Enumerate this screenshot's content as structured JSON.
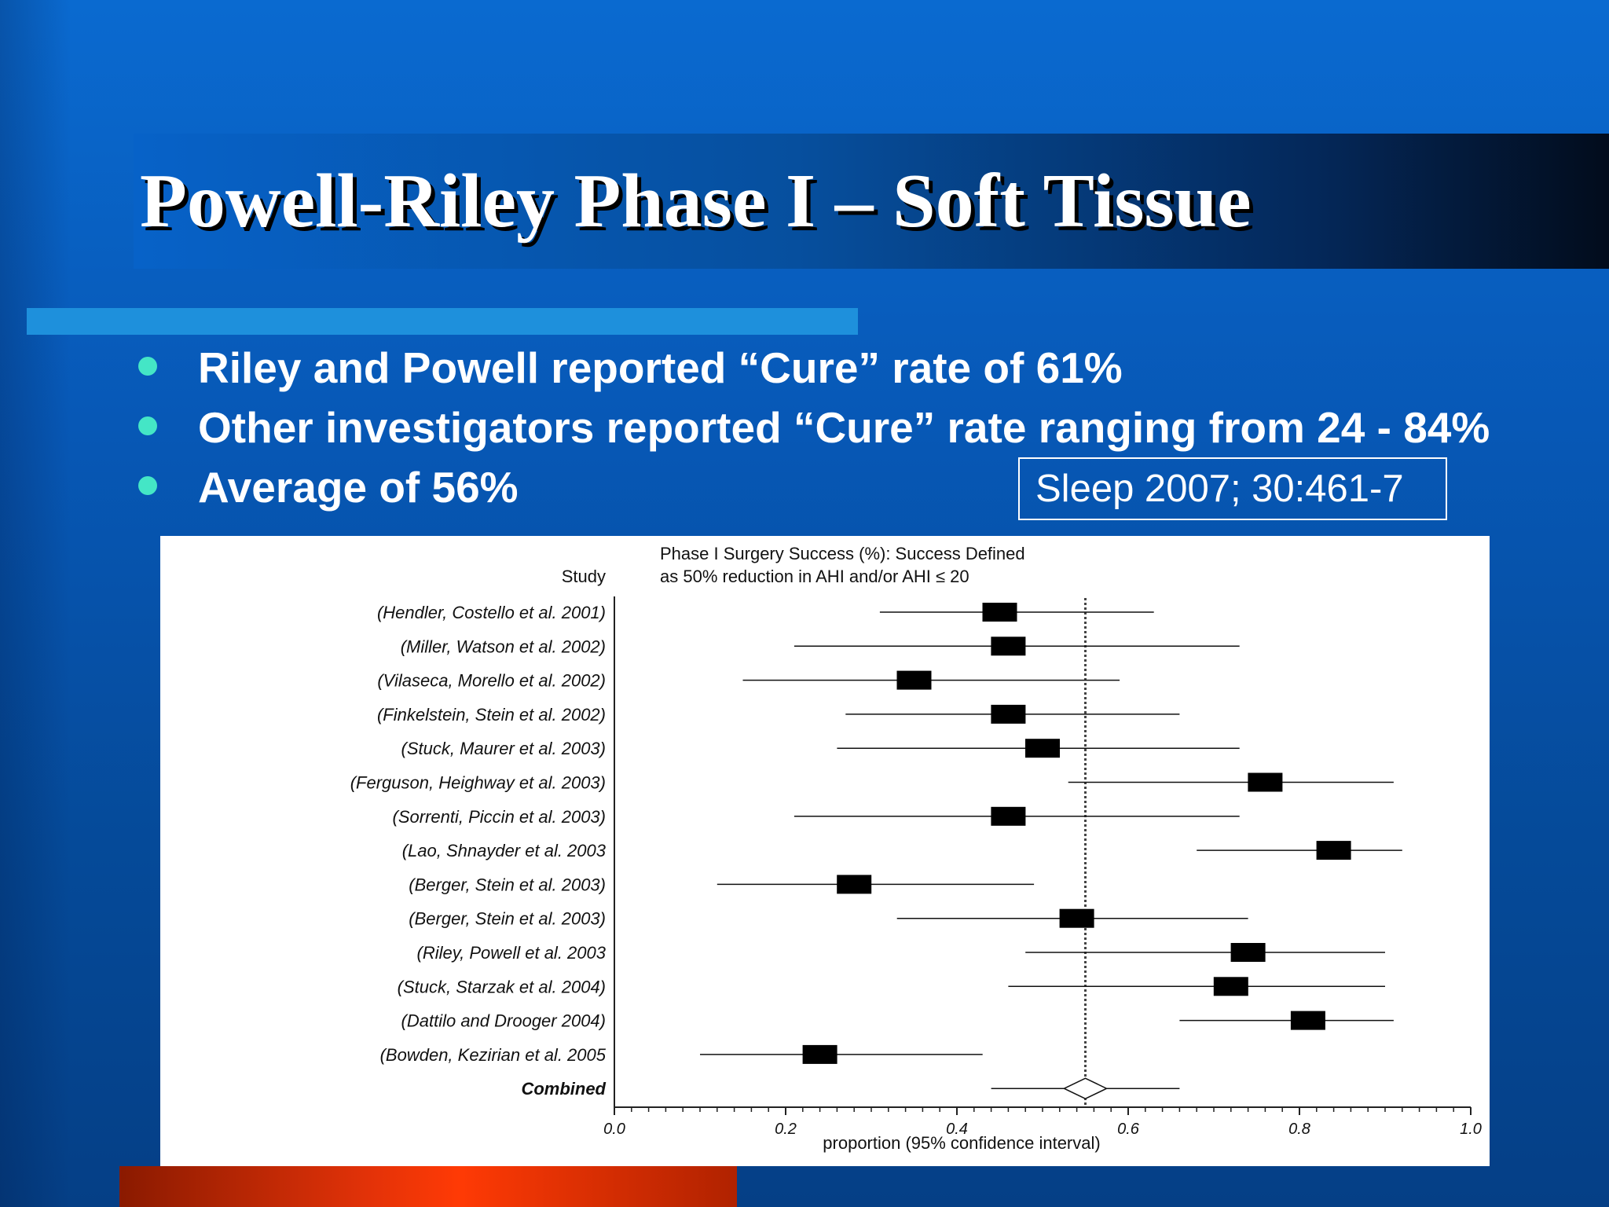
{
  "slide": {
    "title": "Powell-Riley Phase I – Soft Tissue",
    "bullets": [
      "Riley and Powell reported “Cure” rate of 61%",
      "Other investigators reported “Cure” rate ranging from 24 - 84%",
      "Average of 56%"
    ],
    "citation": "Sleep 2007; 30:461-7"
  },
  "colors": {
    "background": "#0758b6",
    "accent_bar": "#1e90dc",
    "bullet": "#44e6c6",
    "bottom_bar": "#ff3a05"
  },
  "chart_data": {
    "type": "forest",
    "title_line1": "Phase I Surgery Success (%): Success Defined",
    "title_line2": "as 50% reduction in AHI and/or AHI ≤ 20",
    "study_header": "Study",
    "xlabel": "proportion (95% confidence interval)",
    "xlim": [
      0.0,
      1.0
    ],
    "xticks": [
      "0.0",
      "0.2",
      "0.4",
      "0.6",
      "0.8",
      "1.0"
    ],
    "reference_line": 0.55,
    "studies": [
      {
        "label": "(Hendler, Costello et al. 2001)",
        "estimate": 0.45,
        "lower": 0.31,
        "upper": 0.63
      },
      {
        "label": "(Miller, Watson et al. 2002)",
        "estimate": 0.46,
        "lower": 0.21,
        "upper": 0.73
      },
      {
        "label": "(Vilaseca, Morello et al. 2002)",
        "estimate": 0.35,
        "lower": 0.15,
        "upper": 0.59
      },
      {
        "label": "(Finkelstein, Stein et al. 2002)",
        "estimate": 0.46,
        "lower": 0.27,
        "upper": 0.66
      },
      {
        "label": "(Stuck, Maurer et al. 2003)",
        "estimate": 0.5,
        "lower": 0.26,
        "upper": 0.73
      },
      {
        "label": "(Ferguson, Heighway et al. 2003)",
        "estimate": 0.76,
        "lower": 0.53,
        "upper": 0.91
      },
      {
        "label": "(Sorrenti, Piccin et al. 2003)",
        "estimate": 0.46,
        "lower": 0.21,
        "upper": 0.73
      },
      {
        "label": "(Lao, Shnayder et al. 2003",
        "estimate": 0.84,
        "lower": 0.68,
        "upper": 0.92
      },
      {
        "label": "(Berger, Stein et al. 2003)",
        "estimate": 0.28,
        "lower": 0.12,
        "upper": 0.49
      },
      {
        "label": "(Berger, Stein et al. 2003)",
        "estimate": 0.54,
        "lower": 0.33,
        "upper": 0.74
      },
      {
        "label": "(Riley, Powell et al. 2003",
        "estimate": 0.74,
        "lower": 0.48,
        "upper": 0.9
      },
      {
        "label": "(Stuck, Starzak et al. 2004)",
        "estimate": 0.72,
        "lower": 0.46,
        "upper": 0.9
      },
      {
        "label": "(Dattilo and Drooger 2004)",
        "estimate": 0.81,
        "lower": 0.66,
        "upper": 0.91
      },
      {
        "label": "(Bowden, Kezirian et al. 2005",
        "estimate": 0.24,
        "lower": 0.1,
        "upper": 0.43
      }
    ],
    "combined": {
      "label": "Combined",
      "estimate": 0.55,
      "lower": 0.44,
      "upper": 0.66
    }
  }
}
